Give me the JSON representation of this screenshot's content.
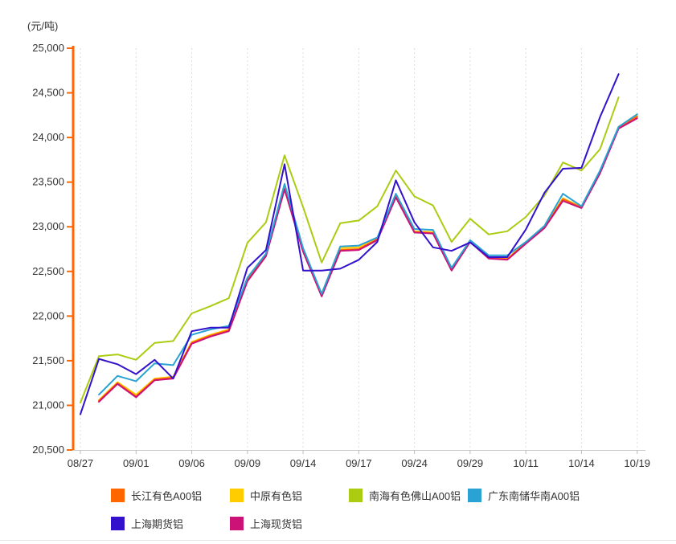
{
  "page": {
    "background": "#ffffff",
    "divider_color": "#e7e7e7"
  },
  "chart": {
    "unit_label": "(元/吨)",
    "y_axis": {
      "tick_labels": [
        "25,000",
        "24,500",
        "24,000",
        "23,500",
        "23,000",
        "22,500",
        "22,000",
        "21,500",
        "21,000",
        "20,500"
      ],
      "min": 20500,
      "max": 25000,
      "step": 500,
      "axis_color": "#ff6600",
      "label_color": "#333333"
    },
    "x_axis": {
      "tick_labels": [
        "08/27",
        "09/01",
        "09/06",
        "09/09",
        "09/14",
        "09/17",
        "09/24",
        "09/29",
        "10/11",
        "10/14",
        "10/19"
      ],
      "tick_indices": [
        0,
        3,
        6,
        9,
        12,
        15,
        18,
        21,
        24,
        27,
        30
      ],
      "axis_color": "#cccccc",
      "tick_color": "#bbbbbb",
      "grid_color": "#dddddd",
      "label_color": "#333333"
    },
    "chart_data": {
      "type": "line",
      "title": "",
      "ylabel": "(元/吨)",
      "ylim": [
        20500,
        25000
      ],
      "grid": "vertical-dashed",
      "legend_position": "bottom",
      "x": [
        "08/27",
        "08/30",
        "08/31",
        "09/01",
        "09/02",
        "09/03",
        "09/06",
        "09/07",
        "09/08",
        "09/09",
        "09/10",
        "09/13",
        "09/14",
        "09/15",
        "09/16",
        "09/17",
        "09/22",
        "09/23",
        "09/24",
        "09/27",
        "09/28",
        "09/29",
        "09/30",
        "10/08",
        "10/11",
        "10/12",
        "10/13",
        "10/14",
        "10/15",
        "10/18",
        "10/19"
      ],
      "series": [
        {
          "name": "长江有色A00铝",
          "color": "#ff6600",
          "values": [
            null,
            21050,
            21250,
            21100,
            21290,
            21310,
            21700,
            21780,
            21840,
            22400,
            22680,
            23430,
            22730,
            22230,
            22740,
            22750,
            22860,
            23340,
            22940,
            22930,
            22515,
            22840,
            22650,
            22635,
            22820,
            22990,
            23310,
            23215,
            23610,
            24110,
            24235
          ]
        },
        {
          "name": "中原有色铝",
          "color": "#ffcc00",
          "values": [
            null,
            21060,
            21260,
            21120,
            21300,
            21320,
            21710,
            21790,
            21850,
            22410,
            22690,
            23430,
            22740,
            22250,
            22760,
            22770,
            22870,
            23340,
            22950,
            22940,
            22520,
            22850,
            22660,
            22640,
            22830,
            23000,
            23320,
            23220,
            23620,
            24120,
            24240
          ]
        },
        {
          "name": "南海有色佛山A00铝",
          "color": "#aacc11",
          "values": [
            21030,
            21550,
            21570,
            21510,
            21700,
            21720,
            22030,
            22110,
            22200,
            22820,
            23050,
            23800,
            23220,
            22600,
            23040,
            23070,
            23230,
            23630,
            23340,
            23240,
            22830,
            23090,
            22915,
            22950,
            23110,
            23350,
            23720,
            23630,
            23870,
            24450,
            null
          ]
        },
        {
          "name": "广东南储华南A00铝",
          "color": "#29a3d4",
          "values": [
            null,
            21120,
            21330,
            21270,
            21470,
            21450,
            21790,
            21850,
            21890,
            22430,
            22700,
            23480,
            22760,
            22250,
            22780,
            22790,
            22880,
            23370,
            22975,
            22965,
            22540,
            22850,
            22680,
            22680,
            22830,
            23010,
            23370,
            23230,
            23630,
            24120,
            24260
          ]
        },
        {
          "name": "上海期货铝",
          "color": "#3311cc",
          "values": [
            20900,
            21520,
            21460,
            21350,
            21510,
            21300,
            21830,
            21870,
            21870,
            22540,
            22740,
            23700,
            22510,
            22510,
            22530,
            22630,
            22830,
            23520,
            23050,
            22770,
            22730,
            22825,
            22660,
            22660,
            22970,
            23380,
            23650,
            23660,
            24230,
            24710,
            null
          ]
        },
        {
          "name": "上海现货铝",
          "color": "#cc1177",
          "values": [
            null,
            21040,
            21240,
            21090,
            21280,
            21300,
            21690,
            21770,
            21830,
            22390,
            22670,
            23420,
            22720,
            22220,
            22730,
            22740,
            22850,
            23330,
            22935,
            22925,
            22510,
            22830,
            22645,
            22630,
            22810,
            22985,
            23290,
            23210,
            23600,
            24100,
            24215
          ]
        }
      ],
      "draw_order": [
        1,
        0,
        5,
        3,
        2,
        4
      ]
    }
  },
  "legend": {
    "rows": [
      [
        "长江有色A00铝",
        "中原有色铝",
        "南海有色佛山A00铝",
        "广东南储华南A00铝"
      ],
      [
        "上海期货铝",
        "上海现货铝"
      ]
    ]
  }
}
